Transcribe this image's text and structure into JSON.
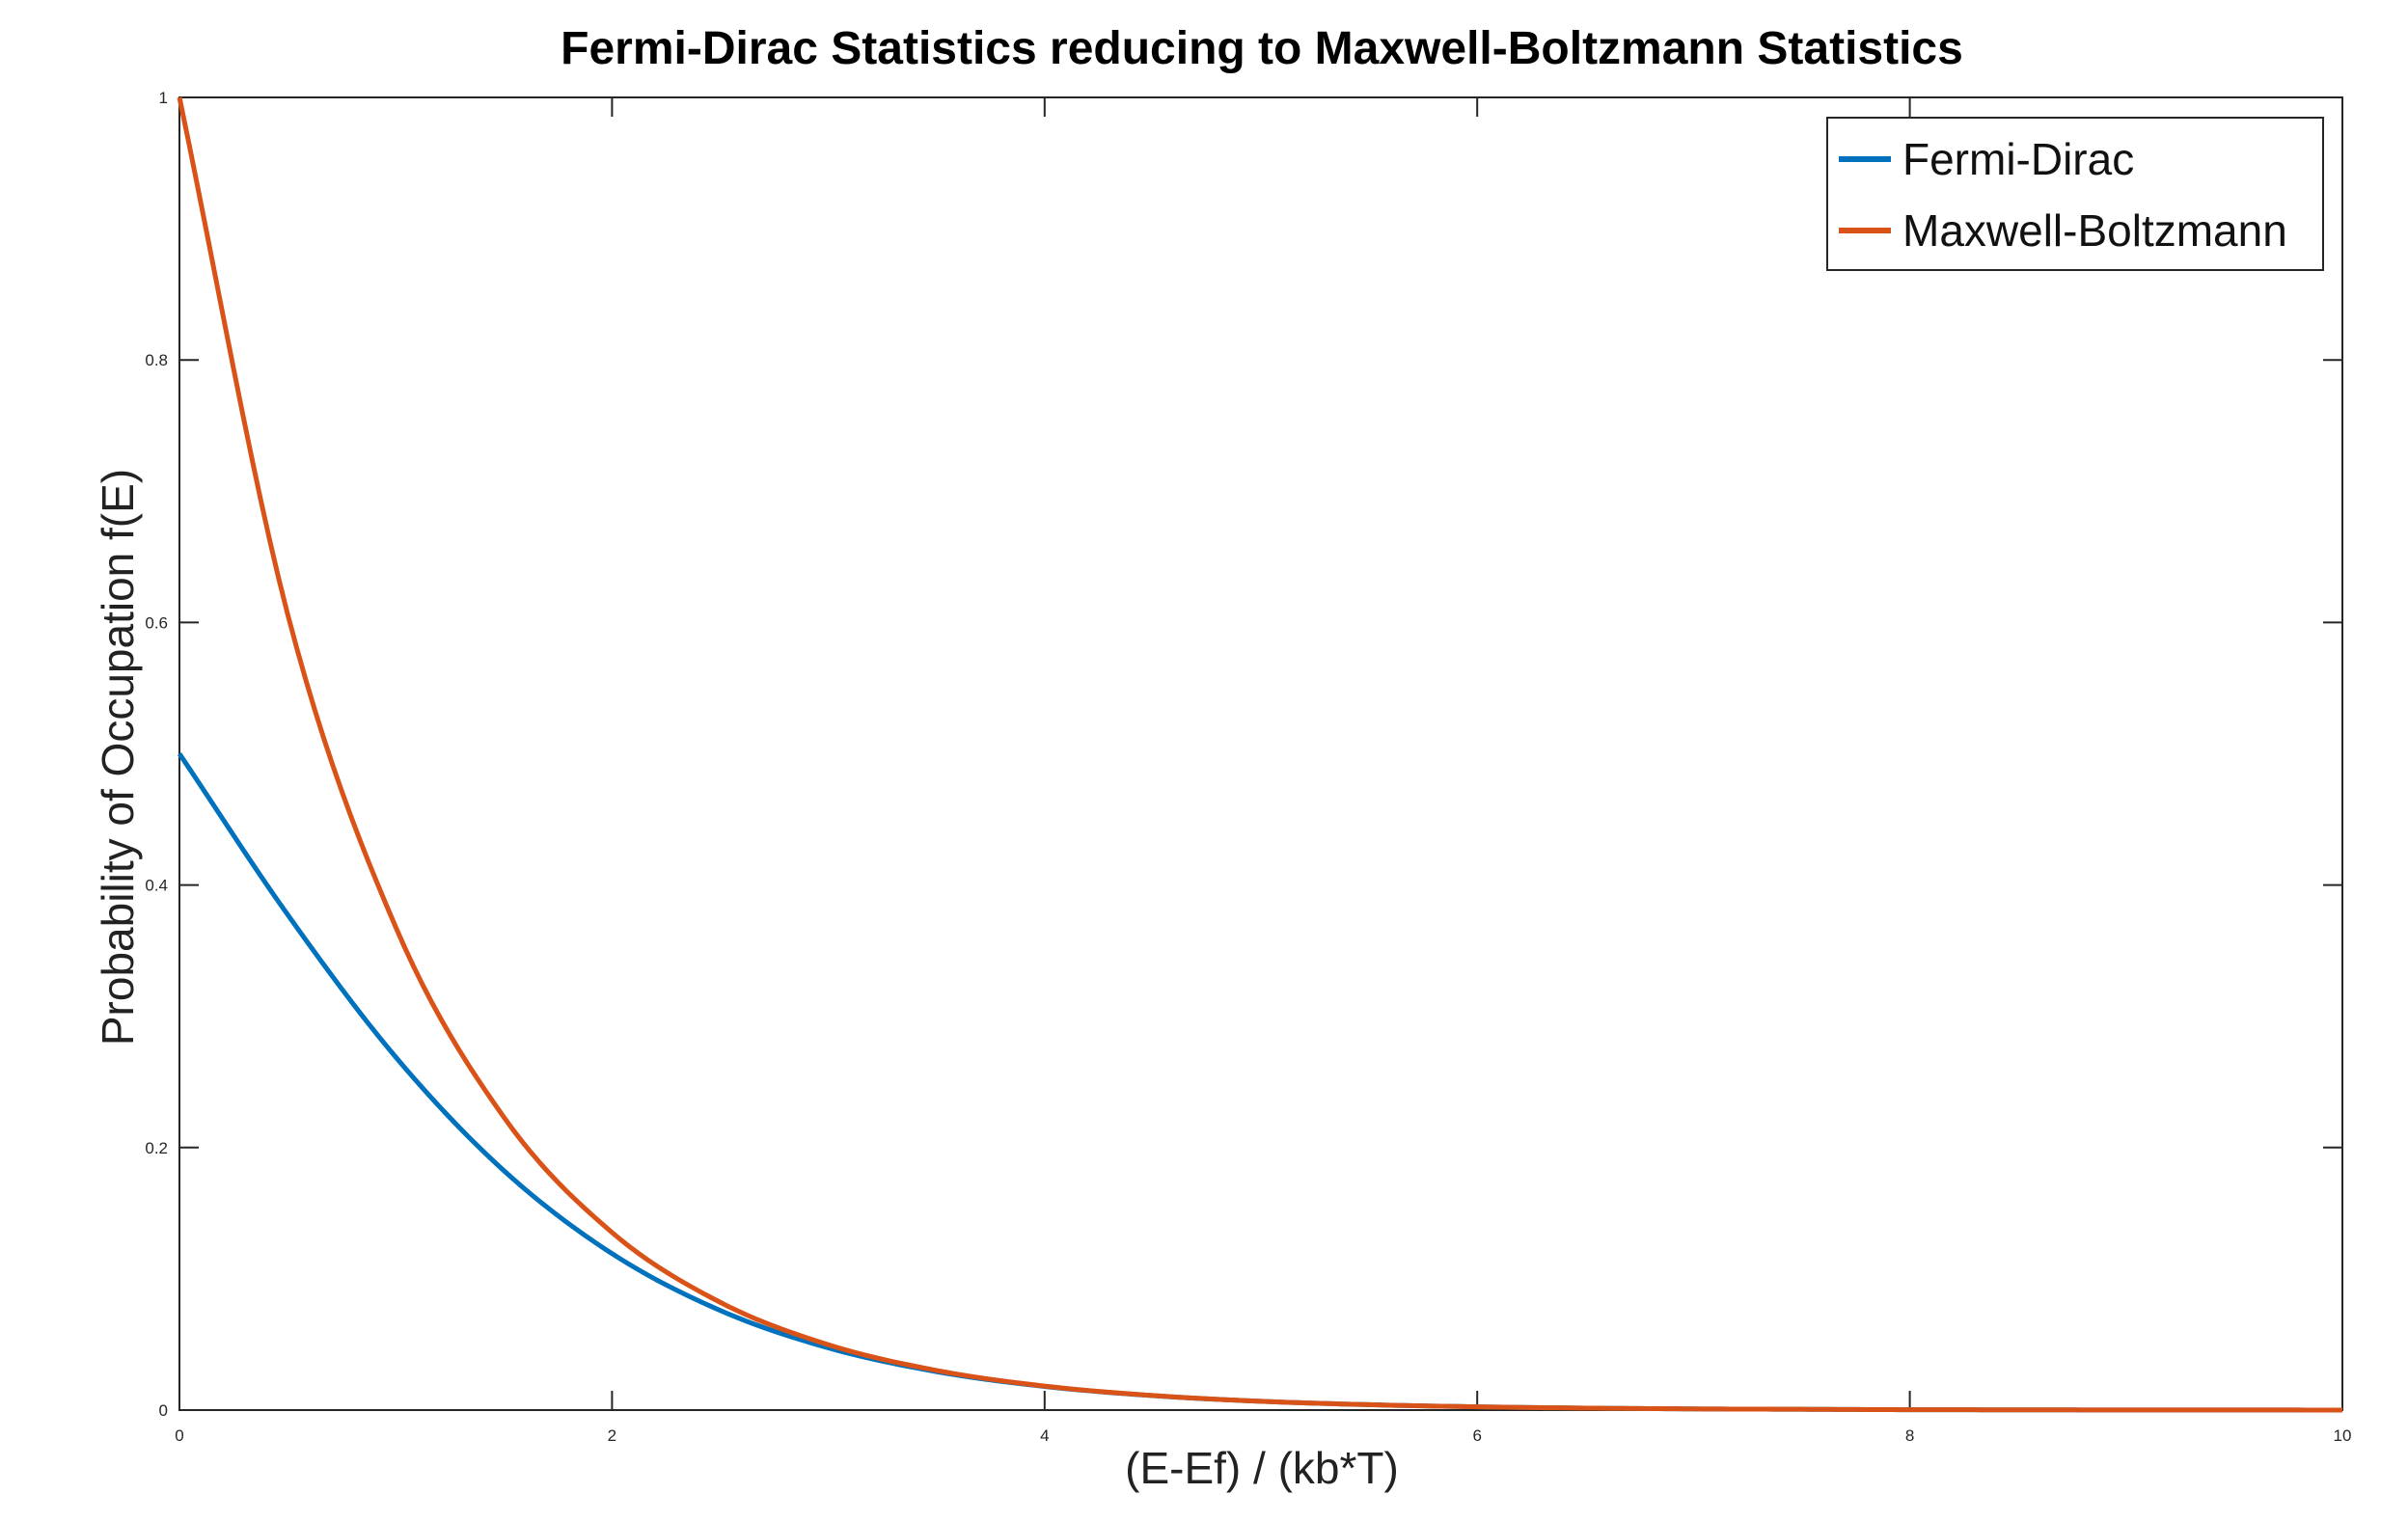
{
  "chart_data": {
    "type": "line",
    "title": "Fermi-Dirac Statistics reducing to Maxwell-Boltzmann Statistics",
    "xlabel": "(E-Ef) / (kb*T)",
    "ylabel": "Probability of Occupation f(E)",
    "xlim": [
      0,
      10
    ],
    "ylim": [
      0,
      1
    ],
    "xticks": [
      "0",
      "2",
      "4",
      "6",
      "8",
      "10"
    ],
    "yticks": [
      "0",
      "0.2",
      "0.4",
      "0.6",
      "0.8",
      "1"
    ],
    "grid": false,
    "legend_position": "top-right",
    "x": [
      0,
      0.5,
      1,
      1.5,
      2,
      2.5,
      3,
      3.5,
      4,
      4.5,
      5,
      5.5,
      6,
      6.5,
      7,
      7.5,
      8,
      8.5,
      9,
      9.5,
      10
    ],
    "series": [
      {
        "name": "Fermi-Dirac",
        "color": "#0072BD",
        "values": [
          0.5,
          0.3775,
          0.2689,
          0.1824,
          0.1192,
          0.0759,
          0.0474,
          0.0293,
          0.018,
          0.011,
          0.0067,
          0.0041,
          0.0025,
          0.0015,
          0.0009,
          0.0006,
          0.0003,
          0.0002,
          0.0001,
          0.0001,
          0.0
        ]
      },
      {
        "name": "Maxwell-Boltzmann",
        "color": "#D95319",
        "values": [
          1.0,
          0.6065,
          0.3679,
          0.2231,
          0.1353,
          0.0821,
          0.0498,
          0.0302,
          0.0183,
          0.0111,
          0.0067,
          0.0041,
          0.0025,
          0.0015,
          0.0009,
          0.0006,
          0.0003,
          0.0002,
          0.0001,
          0.0001,
          0.0
        ]
      }
    ]
  }
}
